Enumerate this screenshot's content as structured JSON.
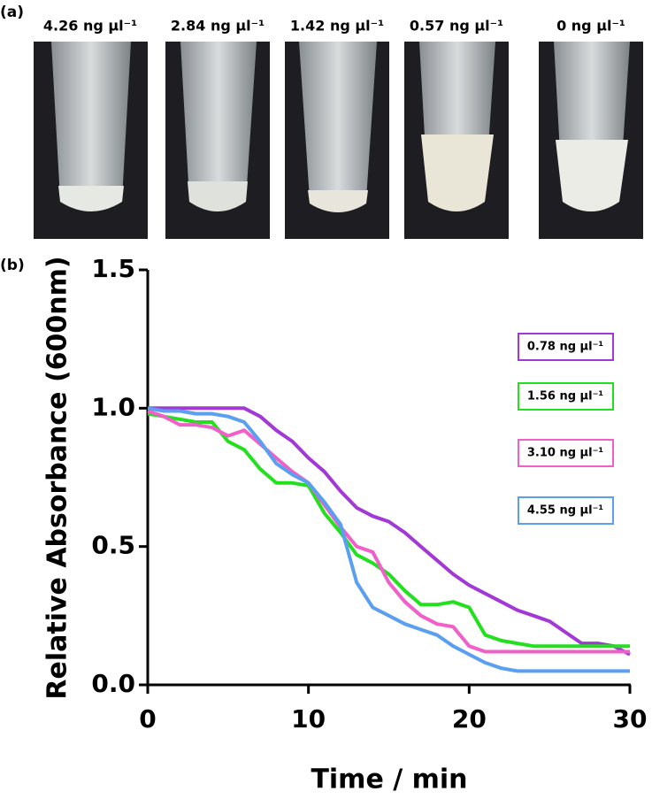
{
  "panels": {
    "a": "(a)",
    "b": "(b)"
  },
  "photos": [
    "4.26 ng µl⁻¹",
    "2.84 ng µl⁻¹",
    "1.42 ng µl⁻¹",
    "0.57 ng µl⁻¹",
    "0 ng µl⁻¹"
  ],
  "chart_data": {
    "type": "line",
    "xlabel": "Time / min",
    "ylabel": "Relative Absorbance (600nm)",
    "x": [
      0,
      1,
      2,
      3,
      4,
      5,
      6,
      7,
      8,
      9,
      10,
      11,
      12,
      13,
      14,
      15,
      16,
      17,
      18,
      19,
      20,
      21,
      22,
      23,
      24,
      25,
      26,
      27,
      28,
      29,
      30
    ],
    "series": [
      {
        "name": "0.78 ng µl⁻¹",
        "color": "#a238d6",
        "values": [
          1.0,
          1.0,
          1.0,
          1.0,
          1.0,
          1.0,
          1.0,
          0.97,
          0.92,
          0.88,
          0.82,
          0.77,
          0.7,
          0.64,
          0.61,
          0.59,
          0.55,
          0.5,
          0.45,
          0.4,
          0.36,
          0.33,
          0.3,
          0.27,
          0.25,
          0.23,
          0.19,
          0.15,
          0.15,
          0.14,
          0.11
        ]
      },
      {
        "name": "1.56 ng µl⁻¹",
        "color": "#22e01e",
        "values": [
          0.98,
          0.97,
          0.96,
          0.95,
          0.95,
          0.88,
          0.85,
          0.78,
          0.73,
          0.73,
          0.72,
          0.62,
          0.55,
          0.47,
          0.44,
          0.4,
          0.34,
          0.29,
          0.29,
          0.3,
          0.28,
          0.18,
          0.16,
          0.15,
          0.14,
          0.14,
          0.14,
          0.14,
          0.14,
          0.14,
          0.14
        ]
      },
      {
        "name": "3.10 ng µl⁻¹",
        "color": "#f060c8",
        "values": [
          0.99,
          0.97,
          0.94,
          0.94,
          0.93,
          0.9,
          0.92,
          0.87,
          0.82,
          0.77,
          0.73,
          0.65,
          0.57,
          0.5,
          0.48,
          0.37,
          0.3,
          0.25,
          0.22,
          0.21,
          0.14,
          0.12,
          0.12,
          0.12,
          0.12,
          0.12,
          0.12,
          0.12,
          0.12,
          0.12,
          0.12
        ]
      },
      {
        "name": "4.55 ng µl⁻¹",
        "color": "#5a9ff0",
        "values": [
          1.0,
          0.99,
          0.99,
          0.98,
          0.98,
          0.97,
          0.95,
          0.88,
          0.8,
          0.76,
          0.73,
          0.66,
          0.58,
          0.37,
          0.28,
          0.25,
          0.22,
          0.2,
          0.18,
          0.14,
          0.11,
          0.08,
          0.06,
          0.05,
          0.05,
          0.05,
          0.05,
          0.05,
          0.05,
          0.05,
          0.05
        ]
      }
    ],
    "xlim": [
      0,
      30
    ],
    "xticks": [
      0,
      10,
      20,
      30
    ],
    "ylim": [
      0,
      1.5
    ],
    "yticks": [
      {
        "value": 0,
        "label": "0.0"
      },
      {
        "value": 0.5,
        "label": "0.5"
      },
      {
        "value": 1,
        "label": "1.0"
      },
      {
        "value": 1.5,
        "label": "1.5"
      }
    ],
    "grid": false,
    "legend": "right"
  }
}
